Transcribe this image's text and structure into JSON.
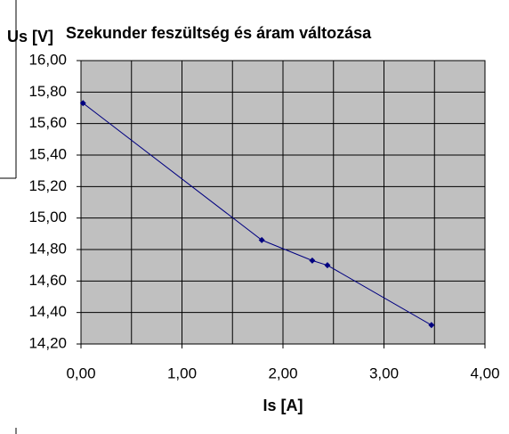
{
  "chart_data": {
    "type": "line",
    "title": "Szekunder feszültség és áram változása",
    "y_label": "Us [V]",
    "x_label": "Is [A]",
    "x": [
      0.02,
      1.79,
      2.29,
      2.44,
      3.47
    ],
    "series": [
      {
        "color": "#000080",
        "values": [
          15.73,
          14.86,
          14.73,
          14.7,
          14.32
        ]
      }
    ],
    "xlim": [
      0,
      4
    ],
    "xticks": [
      {
        "value": 0,
        "label": "0,00"
      },
      {
        "value": 1,
        "label": "1,00"
      },
      {
        "value": 2,
        "label": "2,00"
      },
      {
        "value": 3,
        "label": "3,00"
      },
      {
        "value": 4,
        "label": "4,00"
      }
    ],
    "x_minor_grid": [
      0.5,
      1.5,
      2.5,
      3.5
    ],
    "ylim": [
      14.2,
      16
    ],
    "yticks": [
      {
        "value": 14.2,
        "label": "14,20"
      },
      {
        "value": 14.4,
        "label": "14,40"
      },
      {
        "value": 14.6,
        "label": "14,60"
      },
      {
        "value": 14.8,
        "label": "14,80"
      },
      {
        "value": 15,
        "label": "15,00"
      },
      {
        "value": 15.2,
        "label": "15,20"
      },
      {
        "value": 15.4,
        "label": "15,40"
      },
      {
        "value": 15.6,
        "label": "15,60"
      },
      {
        "value": 15.8,
        "label": "15,80"
      },
      {
        "value": 16,
        "label": "16,00"
      }
    ],
    "grid": true,
    "plot_background": "#c0c0c0"
  }
}
